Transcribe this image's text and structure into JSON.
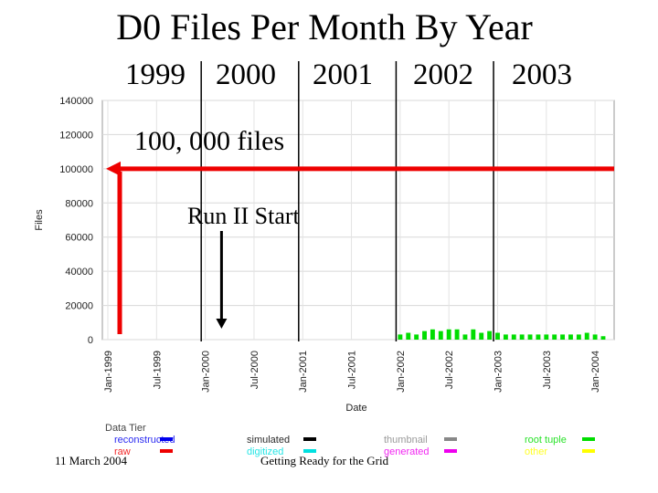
{
  "slide": {
    "title": "D0 Files Per Month By Year",
    "years": [
      "1999",
      "2000",
      "2001",
      "2002",
      "2003"
    ],
    "annotations": {
      "files_line": "100, 000 files",
      "run_start": "Run II Start"
    },
    "footer": {
      "date": "11 March 2004",
      "center": "Getting Ready for the Grid"
    }
  },
  "chart_data": {
    "type": "bar",
    "stacked": true,
    "xlabel": "Date",
    "ylabel": "Files",
    "ylim": [
      0,
      140000
    ],
    "yticks": [
      0,
      20000,
      40000,
      60000,
      80000,
      100000,
      120000,
      140000
    ],
    "xticks": [
      "Jan-1999",
      "Jul-1999",
      "Jan-2000",
      "Jul-2000",
      "Jan-2001",
      "Jul-2001",
      "Jan-2002",
      "Jul-2002",
      "Jan-2003",
      "Jul-2003",
      "Jan-2004"
    ],
    "grid": true,
    "legend_title": "Data Tier",
    "legend_position": "bottom",
    "reference_line": 100000,
    "run_start_month": "Mar-2000",
    "months": [
      "Jan-1999",
      "Feb-1999",
      "Mar-1999",
      "Apr-1999",
      "May-1999",
      "Jun-1999",
      "Jul-1999",
      "Aug-1999",
      "Sep-1999",
      "Oct-1999",
      "Nov-1999",
      "Dec-1999",
      "Jan-2000",
      "Feb-2000",
      "Mar-2000",
      "Apr-2000",
      "May-2000",
      "Jun-2000",
      "Jul-2000",
      "Aug-2000",
      "Sep-2000",
      "Oct-2000",
      "Nov-2000",
      "Dec-2000",
      "Jan-2001",
      "Feb-2001",
      "Mar-2001",
      "Apr-2001",
      "May-2001",
      "Jun-2001",
      "Jul-2001",
      "Aug-2001",
      "Sep-2001",
      "Oct-2001",
      "Nov-2001",
      "Dec-2001",
      "Jan-2002",
      "Feb-2002",
      "Mar-2002",
      "Apr-2002",
      "May-2002",
      "Jun-2002",
      "Jul-2002",
      "Aug-2002",
      "Sep-2002",
      "Oct-2002",
      "Nov-2002",
      "Dec-2002",
      "Jan-2003",
      "Feb-2003",
      "Mar-2003",
      "Apr-2003",
      "May-2003",
      "Jun-2003",
      "Jul-2003",
      "Aug-2003",
      "Sep-2003",
      "Oct-2003",
      "Nov-2003",
      "Dec-2003",
      "Jan-2004",
      "Feb-2004"
    ],
    "series": [
      {
        "name": "root tuple",
        "color": "#00dd00",
        "values": [
          0,
          0,
          0,
          0,
          0,
          0,
          0,
          0,
          0,
          0,
          0,
          0,
          0,
          0,
          0,
          0,
          0,
          0,
          0,
          0,
          0,
          0,
          0,
          0,
          0,
          0,
          0,
          0,
          0,
          0,
          0,
          0,
          0,
          0,
          0,
          0,
          3000,
          4000,
          3000,
          5000,
          6000,
          5000,
          6000,
          6000,
          3000,
          6000,
          4000,
          5000,
          4000,
          3000,
          3000,
          3000,
          3000,
          3000,
          3000,
          3000,
          3000,
          3000,
          3000,
          4000,
          3000,
          2000
        ]
      },
      {
        "name": "other",
        "color": "#ffff00",
        "values": [
          0,
          0,
          0,
          0,
          0,
          0,
          0,
          0,
          0,
          0,
          0,
          0,
          0,
          0,
          0,
          0,
          0,
          0,
          0,
          0,
          0,
          0,
          0,
          0,
          0,
          0,
          0,
          0,
          0,
          0,
          0,
          0,
          0,
          0,
          0,
          0,
          0,
          0,
          0,
          0,
          0,
          0,
          0,
          0,
          0,
          0,
          0,
          0,
          0,
          0,
          0,
          0,
          0,
          0,
          0,
          0,
          0,
          0,
          0,
          0,
          0,
          0
        ]
      },
      {
        "name": "digitized",
        "color": "#00e0e0",
        "values": [
          0,
          0,
          0,
          0,
          0,
          0,
          0,
          0,
          0,
          0,
          0,
          0,
          0,
          0,
          0,
          0,
          0,
          0,
          0,
          0,
          0,
          0,
          0,
          0,
          0,
          0,
          0,
          0,
          0,
          0,
          0,
          0,
          0,
          0,
          0,
          0,
          0,
          0,
          0,
          0,
          0,
          0,
          0,
          0,
          0,
          0,
          0,
          0,
          0,
          0,
          0,
          0,
          0,
          0,
          0,
          0,
          0,
          0,
          0,
          0,
          0,
          0
        ]
      },
      {
        "name": "generated",
        "color": "#ee00ee",
        "values": [
          0,
          0,
          0,
          0,
          0,
          0,
          0,
          0,
          0,
          0,
          0,
          0,
          0,
          0,
          0,
          0,
          0,
          0,
          0,
          0,
          0,
          0,
          0,
          0,
          0,
          0,
          0,
          0,
          0,
          0,
          0,
          0,
          0,
          0,
          0,
          0,
          0,
          0,
          0,
          0,
          0,
          0,
          0,
          0,
          0,
          0,
          0,
          0,
          0,
          0,
          0,
          0,
          0,
          0,
          0,
          0,
          0,
          0,
          0,
          0,
          0,
          0
        ]
      },
      {
        "name": "thumbnail",
        "color": "#888888",
        "values": [
          0,
          0,
          0,
          0,
          0,
          0,
          0,
          0,
          0,
          0,
          0,
          0,
          0,
          0,
          0,
          0,
          0,
          0,
          0,
          0,
          0,
          0,
          0,
          0,
          0,
          0,
          0,
          0,
          0,
          0,
          0,
          0,
          0,
          0,
          0,
          0,
          0,
          0,
          0,
          0,
          0,
          0,
          0,
          0,
          0,
          0,
          0,
          0,
          0,
          0,
          0,
          0,
          0,
          0,
          0,
          0,
          0,
          0,
          0,
          0,
          0,
          0
        ]
      },
      {
        "name": "simulated",
        "color": "#000000",
        "values": [
          0,
          0,
          0,
          0,
          0,
          0,
          0,
          0,
          0,
          0,
          0,
          0,
          0,
          0,
          0,
          0,
          0,
          0,
          0,
          0,
          0,
          0,
          0,
          0,
          0,
          0,
          0,
          0,
          0,
          0,
          0,
          0,
          0,
          0,
          0,
          0,
          0,
          0,
          0,
          0,
          0,
          0,
          0,
          0,
          0,
          0,
          0,
          0,
          0,
          0,
          0,
          0,
          0,
          0,
          0,
          0,
          0,
          0,
          0,
          0,
          0,
          0
        ]
      },
      {
        "name": "raw",
        "color": "#ee0000",
        "values": [
          0,
          0,
          0,
          0,
          0,
          0,
          0,
          0,
          0,
          0,
          0,
          0,
          0,
          0,
          0,
          0,
          0,
          0,
          0,
          0,
          0,
          0,
          0,
          0,
          0,
          0,
          0,
          0,
          0,
          0,
          0,
          0,
          0,
          0,
          0,
          0,
          0,
          0,
          0,
          0,
          0,
          0,
          0,
          0,
          0,
          0,
          0,
          0,
          0,
          0,
          0,
          0,
          0,
          0,
          0,
          0,
          0,
          0,
          0,
          0,
          0,
          0
        ]
      },
      {
        "name": "reconstructed",
        "color": "#0000ee",
        "values": [
          0,
          0,
          0,
          0,
          0,
          0,
          0,
          0,
          0,
          0,
          0,
          0,
          0,
          0,
          0,
          0,
          0,
          0,
          0,
          0,
          0,
          0,
          0,
          0,
          0,
          0,
          0,
          0,
          0,
          0,
          0,
          0,
          0,
          0,
          0,
          0,
          0,
          0,
          0,
          0,
          0,
          0,
          0,
          0,
          0,
          0,
          0,
          0,
          0,
          0,
          0,
          0,
          0,
          0,
          0,
          0,
          0,
          0,
          0,
          0,
          0,
          0
        ]
      }
    ],
    "legend": [
      {
        "name": "reconstructed",
        "label": "reconstructed",
        "color": "#0000ee"
      },
      {
        "name": "raw",
        "label": "raw",
        "color": "#ee0000"
      },
      {
        "name": "simulated",
        "label": "simulated",
        "color": "#000000"
      },
      {
        "name": "digitized",
        "label": "digitized",
        "color": "#00e0e0"
      },
      {
        "name": "thumbnail",
        "label": "thumbnail",
        "color": "#888888"
      },
      {
        "name": "generated",
        "label": "generated",
        "color": "#ee00ee"
      },
      {
        "name": "root tuple",
        "label": "root tuple",
        "color": "#00dd00"
      },
      {
        "name": "other",
        "label": "other",
        "color": "#ffff00"
      }
    ],
    "annotation_color": "#ee0000"
  }
}
